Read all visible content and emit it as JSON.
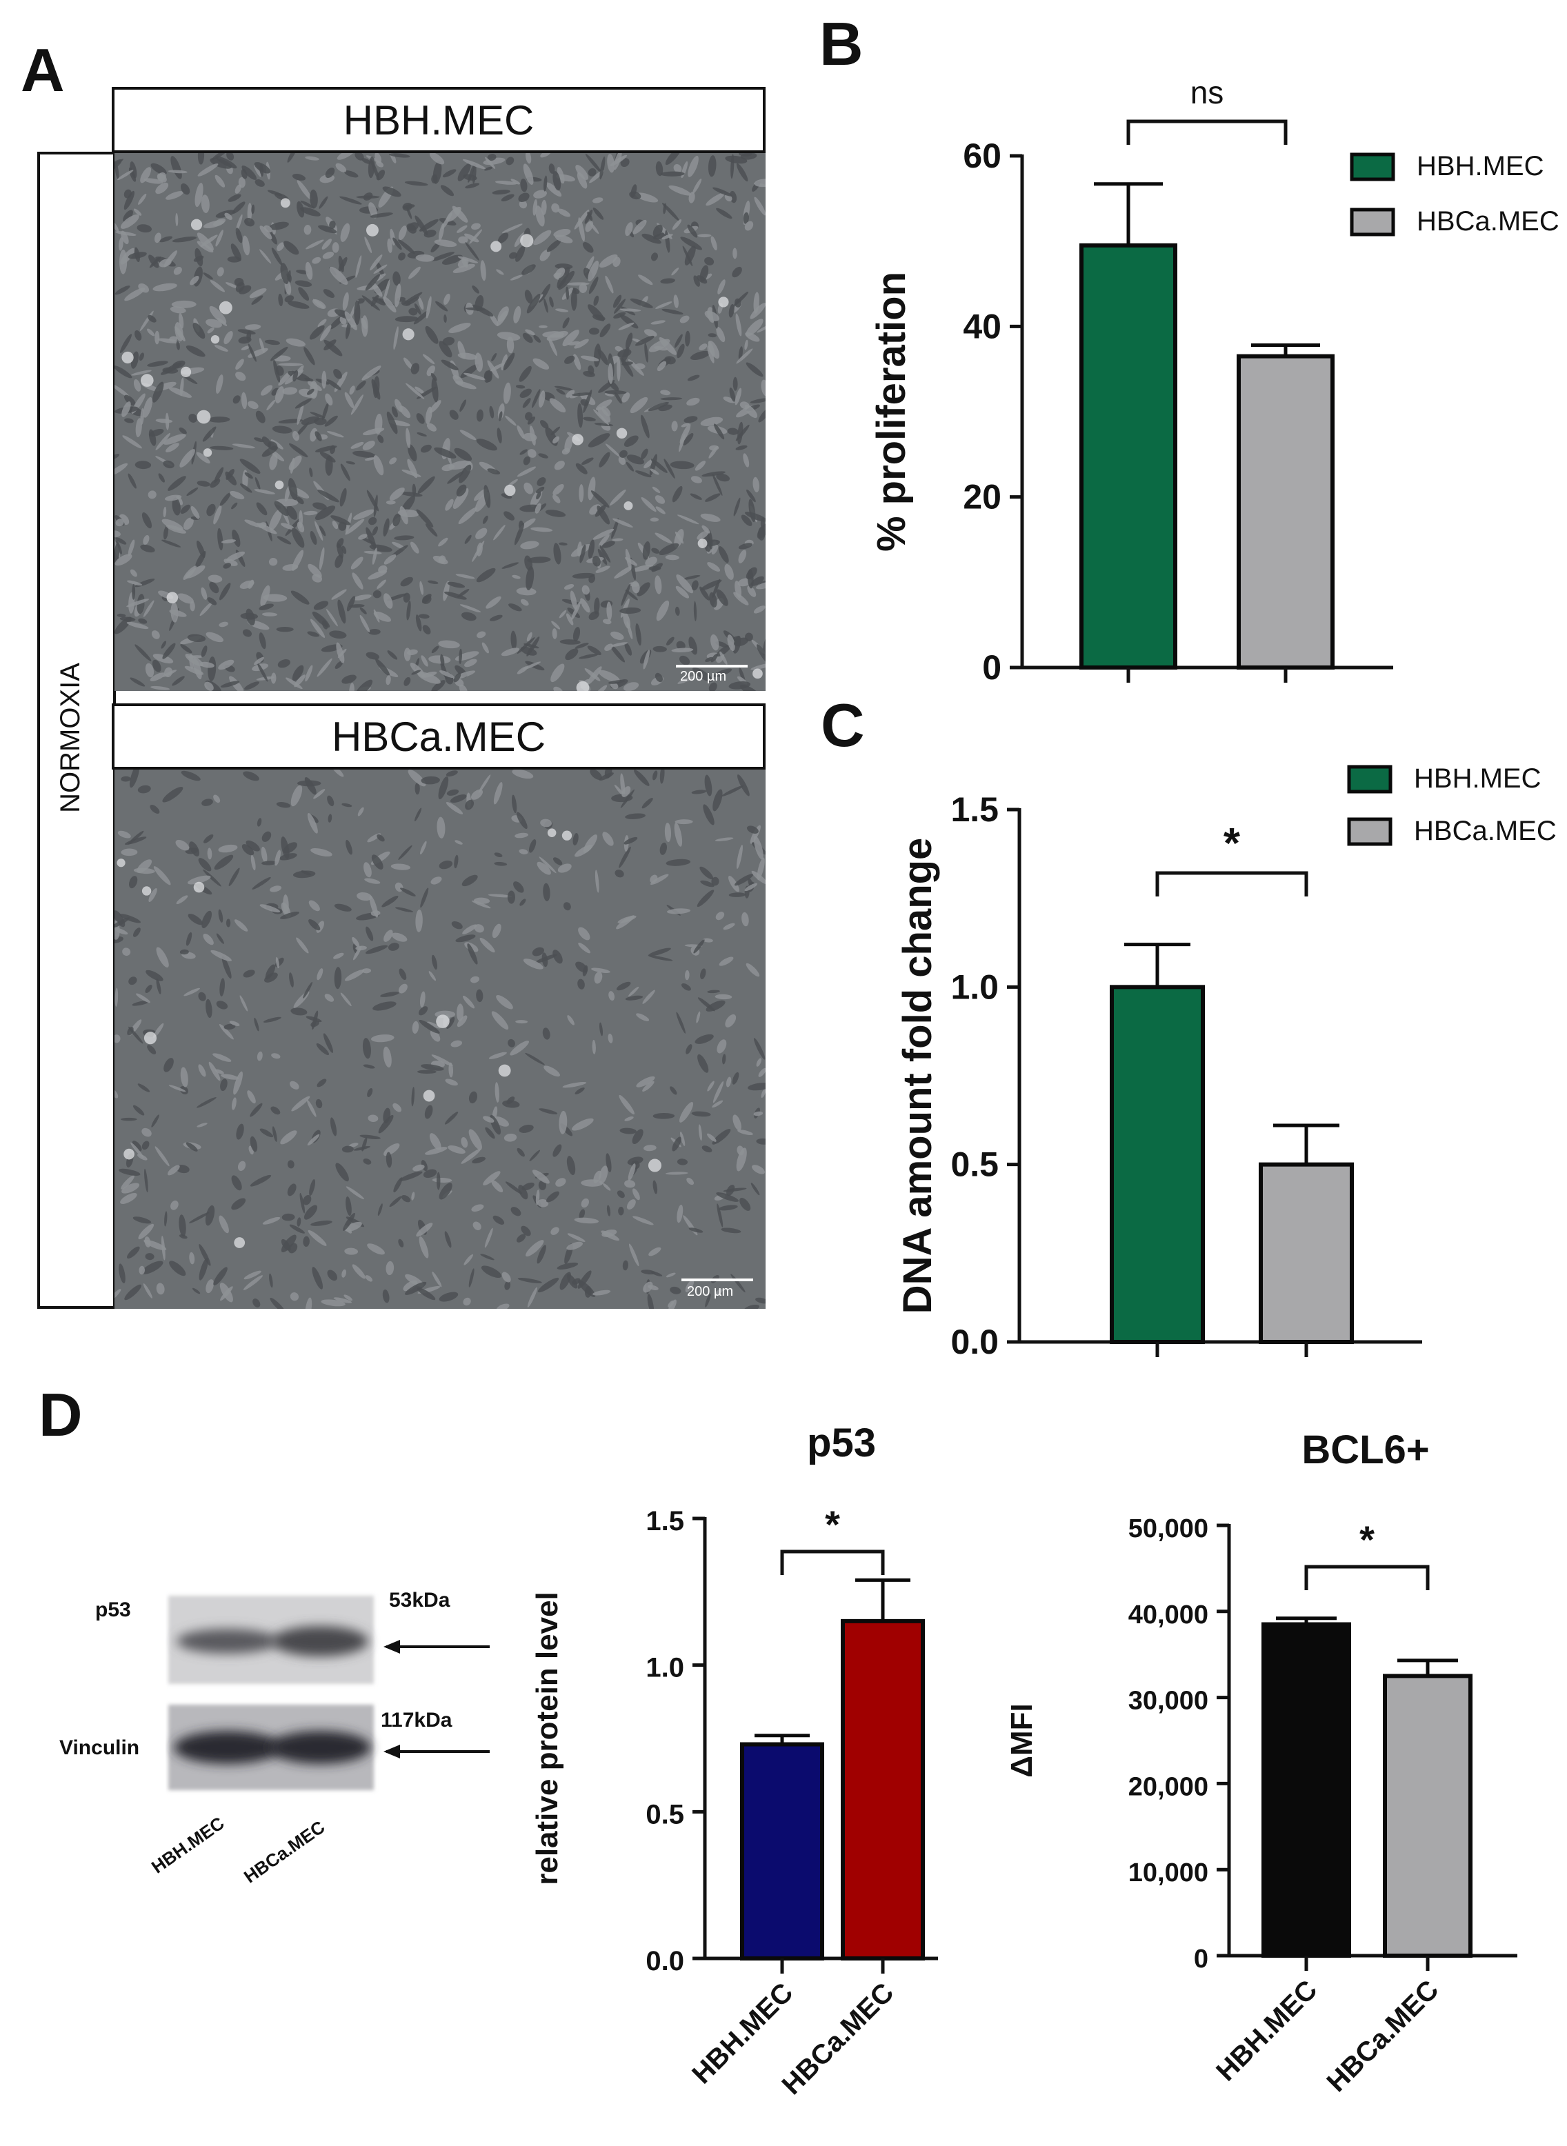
{
  "panels": {
    "a": "A",
    "b": "B",
    "c": "C",
    "d": "D"
  },
  "panel_a": {
    "top_condition": "HBH.MEC",
    "bottom_condition": "HBCa.MEC",
    "side_label": "NORMOXIA",
    "scale_bar_top": "200 µm",
    "scale_bar_bottom": "200 µm"
  },
  "western_blot": {
    "row1_label": "p53",
    "row2_label": "Vinculin",
    "row1_kda": "53kDa",
    "row2_kda": "117kDa",
    "lane_labels": [
      "HBH.MEC",
      "HBCa.MEC"
    ]
  },
  "colors": {
    "green": "#0b6a44",
    "gray": "#a8a8aa",
    "navy": "#0b0b6e",
    "red": "#a00000",
    "black": "#0a0a0a",
    "micro_bg": "#6b6f72"
  },
  "chart_data": [
    {
      "id": "B",
      "type": "bar",
      "categories": [
        "HBH.MEC",
        "HBCa.MEC"
      ],
      "values": [
        49.5,
        36.5
      ],
      "errors": [
        7.2,
        1.3
      ],
      "colors": [
        "#0b6a44",
        "#a8a8aa"
      ],
      "title": "",
      "ylabel": "% proliferation",
      "ylim": [
        0,
        60
      ],
      "yticks": [
        0,
        20,
        40,
        60
      ],
      "ytick_labels": [
        "0",
        "20",
        "40",
        "60"
      ],
      "significance": "ns",
      "legend": [
        "HBH.MEC",
        "HBCa.MEC"
      ],
      "legend_position": "top-right",
      "show_category_labels": false
    },
    {
      "id": "C",
      "type": "bar",
      "categories": [
        "HBH.MEC",
        "HBCa.MEC"
      ],
      "values": [
        1.0,
        0.5
      ],
      "errors": [
        0.12,
        0.11
      ],
      "colors": [
        "#0b6a44",
        "#a8a8aa"
      ],
      "title": "",
      "ylabel": "DNA amount fold change",
      "ylim": [
        0,
        1.5
      ],
      "yticks": [
        0,
        0.5,
        1.0,
        1.5
      ],
      "ytick_labels": [
        "0.0",
        "0.5",
        "1.0",
        "1.5"
      ],
      "significance": "*",
      "legend": [
        "HBH.MEC",
        "HBCa.MEC"
      ],
      "legend_position": "top-right",
      "show_category_labels": false
    },
    {
      "id": "D-p53",
      "type": "bar",
      "categories": [
        "HBH.MEC",
        "HBCa.MEC"
      ],
      "values": [
        0.73,
        1.15
      ],
      "errors": [
        0.03,
        0.14
      ],
      "colors": [
        "#0b0b6e",
        "#a00000"
      ],
      "title": "p53",
      "ylabel": "relative protein level",
      "ylim": [
        0,
        1.5
      ],
      "yticks": [
        0,
        0.5,
        1.0,
        1.5
      ],
      "ytick_labels": [
        "0.0",
        "0.5",
        "1.0",
        "1.5"
      ],
      "significance": "*",
      "legend": [],
      "show_category_labels": true
    },
    {
      "id": "D-BCL6",
      "type": "bar",
      "categories": [
        "HBH.MEC",
        "HBCa.MEC"
      ],
      "values": [
        38500,
        32500
      ],
      "errors": [
        700,
        1800
      ],
      "colors": [
        "#0a0a0a",
        "#a8a8aa"
      ],
      "title": "BCL6+",
      "ylabel": "ΔMFI",
      "ylim": [
        0,
        50000
      ],
      "yticks": [
        0,
        10000,
        20000,
        30000,
        40000,
        50000
      ],
      "ytick_labels": [
        "0",
        "10,000",
        "20,000",
        "30,000",
        "40,000",
        "50,000"
      ],
      "significance": "*",
      "legend": [],
      "show_category_labels": true
    }
  ]
}
